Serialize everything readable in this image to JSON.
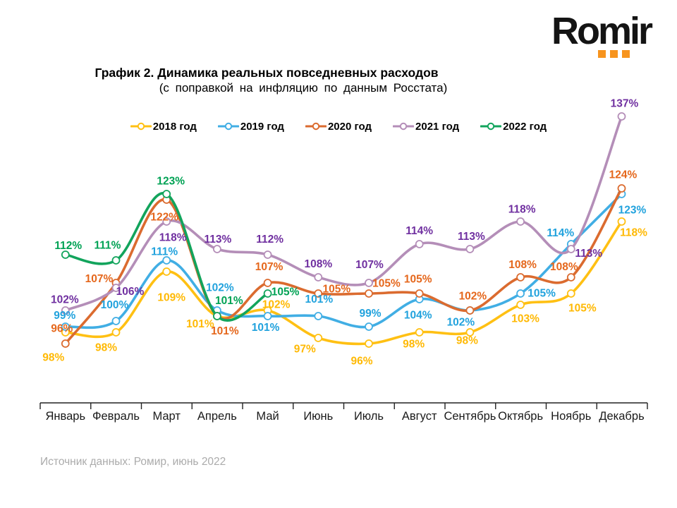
{
  "logo": {
    "text": "Romir",
    "dot_color": "#F7941E",
    "dot_count": 3
  },
  "chart_data": {
    "type": "line",
    "title": "График 2. Динамика реальных повседневных расходов",
    "subtitle": "(с поправкой на инфляцию по данным Росстата)",
    "value_suffix": "%",
    "ylim": [
      94,
      139
    ],
    "grid": false,
    "legend_position": "top",
    "marker_style": "open-circle",
    "axis_color": "#222222",
    "month_label_color": "#1a1a1a",
    "categories": [
      "Январь",
      "Февраль",
      "Март",
      "Апрель",
      "Май",
      "Июнь",
      "Июль",
      "Август",
      "Сентябрь",
      "Октябрь",
      "Ноябрь",
      "Декабрь"
    ],
    "series": [
      {
        "name": "2018 год",
        "color": "#FFC013",
        "label_color": "#FFB904",
        "values": [
          98,
          98,
          109,
          101,
          102,
          97,
          96,
          98,
          98,
          103,
          105,
          118
        ]
      },
      {
        "name": "2019 год",
        "color": "#41AEE4",
        "label_color": "#21A2DD",
        "values": [
          99,
          100,
          111,
          102,
          101,
          101,
          99,
          104,
          102,
          105,
          114,
          123
        ]
      },
      {
        "name": "2020 год",
        "color": "#DB6B2F",
        "label_color": "#E5671C",
        "values": [
          96,
          107,
          122,
          101,
          107,
          105,
          105,
          105,
          102,
          108,
          108,
          124
        ]
      },
      {
        "name": "2021 год",
        "color": "#B48EB8",
        "label_color": "#7030A0",
        "values": [
          102,
          106,
          118,
          113,
          112,
          108,
          107,
          114,
          113,
          118,
          113,
          137
        ]
      },
      {
        "name": "2022 год",
        "color": "#12A45C",
        "label_color": "#00A254",
        "values": [
          112,
          111,
          123,
          101,
          105
        ]
      }
    ]
  },
  "footer": {
    "source": "Источник данных: Ромир, июнь 2022"
  }
}
